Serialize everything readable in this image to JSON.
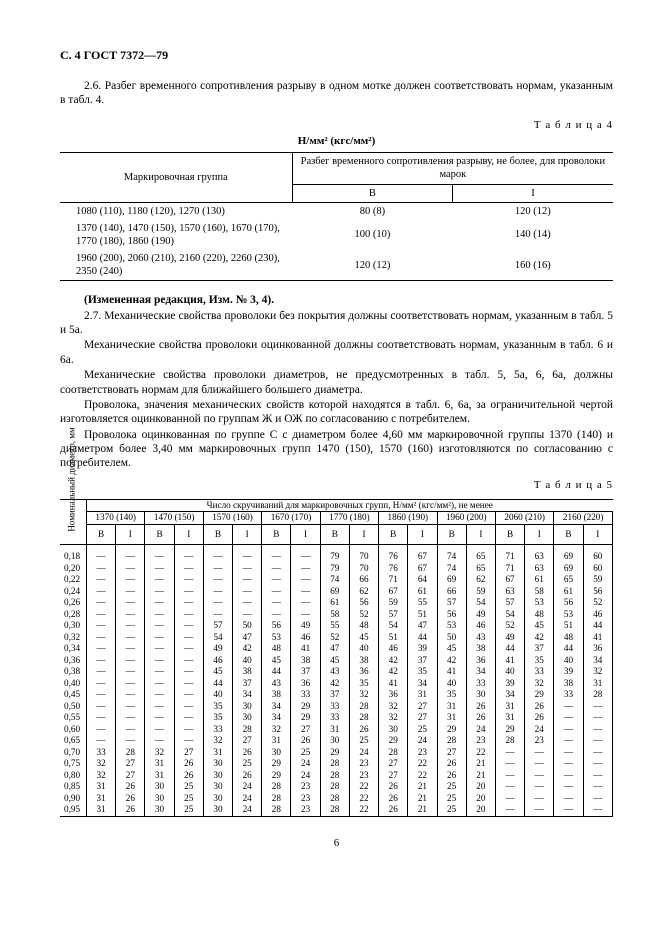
{
  "header": "С. 4  ГОСТ 7372—79",
  "p26": "2.6.  Разбег временного сопротивления разрыву в одном мотке должен соответствовать нормам, указанным в табл. 4.",
  "t4label": "Т а б л и ц а  4",
  "t4unit": "Н/мм² (кгс/мм²)",
  "t4": {
    "h_group": "Маркировочная группа",
    "h_spread": "Разбег временного сопротивления разрыву, не более,\nдля проволоки марок",
    "h_v": "В",
    "h_i": "I",
    "rows": [
      {
        "g": "1080 (110), 1180 (120), 1270 (130)",
        "v": "80 (8)",
        "i": "120 (12)"
      },
      {
        "g": "1370 (140), 1470 (150), 1570 (160), 1670 (170), 1770 (180), 1860 (190)",
        "v": "100 (10)",
        "i": "140 (14)"
      },
      {
        "g": "1960 (200), 2060 (210), 2160 (220), 2260 (230), 2350 (240)",
        "v": "120 (12)",
        "i": "160 (16)"
      }
    ]
  },
  "pChange": "(Измененная редакция, Изм. № 3, 4).",
  "p27a": "2.7.  Механические свойства проволоки без покрытия должны соответствовать нормам, указанным в табл. 5 и 5а.",
  "p27b": "Механические свойства проволоки оцинкованной должны соответствовать нормам, указанным в табл. 6 и 6а.",
  "p27c": "Механические свойства проволоки диаметров, не предусмотренных в табл. 5, 5а, 6, 6а, должны соответствовать нормам для ближайшего большего диаметра.",
  "p27d": "Проволока, значения механических свойств которой находятся в табл. 6, 6а, за ограничительной чертой изготовляется оцинкованной по группам Ж и ОЖ по согласованию с потребителем.",
  "p27e": "Проволока оцинкованная по группе С с диаметром более 4,60 мм маркировочной группы 1370 (140) и диаметром более 3,40 мм маркировочных групп 1470 (150), 1570 (160) изготовляются по согласованию с потребителем.",
  "t5label": "Т а б л и ц а  5",
  "t5": {
    "vert": "Номинальный\nдиаметр, мм",
    "title": "Число скручиваний для маркировочных групп, Н/мм² (кгс/мм²), не менее",
    "groups": [
      "1370 (140)",
      "1470 (150)",
      "1570 (160)",
      "1670 (170)",
      "1770 (180)",
      "1860 (190)",
      "1960 (200)",
      "2060 (210)",
      "2160 (220)"
    ],
    "sub": [
      "В",
      "I"
    ],
    "diam": [
      "0,18",
      "0,20",
      "0,22",
      "0,24",
      "0,26",
      "0,28",
      "0,30",
      "0,32",
      "0,34",
      "0,36",
      "0,38",
      "0,40",
      "0,45",
      "0,50",
      "0,55",
      "0,60",
      "0,65",
      "0,70",
      "0,75",
      "0,80",
      "0,85",
      "0,90",
      "0,95"
    ],
    "data": [
      [
        "—",
        "—",
        "—",
        "—",
        "—",
        "—",
        "—",
        "—",
        "79",
        "70",
        "76",
        "67",
        "74",
        "65",
        "71",
        "63",
        "69",
        "60"
      ],
      [
        "—",
        "—",
        "—",
        "—",
        "—",
        "—",
        "—",
        "—",
        "79",
        "70",
        "76",
        "67",
        "74",
        "65",
        "71",
        "63",
        "69",
        "60"
      ],
      [
        "—",
        "—",
        "—",
        "—",
        "—",
        "—",
        "—",
        "—",
        "74",
        "66",
        "71",
        "64",
        "69",
        "62",
        "67",
        "61",
        "65",
        "59"
      ],
      [
        "—",
        "—",
        "—",
        "—",
        "—",
        "—",
        "—",
        "—",
        "69",
        "62",
        "67",
        "61",
        "66",
        "59",
        "63",
        "58",
        "61",
        "56"
      ],
      [
        "—",
        "—",
        "—",
        "—",
        "—",
        "—",
        "—",
        "—",
        "61",
        "56",
        "59",
        "55",
        "57",
        "54",
        "57",
        "53",
        "56",
        "52"
      ],
      [
        "—",
        "—",
        "—",
        "—",
        "—",
        "—",
        "—",
        "—",
        "58",
        "52",
        "57",
        "51",
        "56",
        "49",
        "54",
        "48",
        "53",
        "46"
      ],
      [
        "—",
        "—",
        "—",
        "—",
        "57",
        "50",
        "56",
        "49",
        "55",
        "48",
        "54",
        "47",
        "53",
        "46",
        "52",
        "45",
        "51",
        "44"
      ],
      [
        "—",
        "—",
        "—",
        "—",
        "54",
        "47",
        "53",
        "46",
        "52",
        "45",
        "51",
        "44",
        "50",
        "43",
        "49",
        "42",
        "48",
        "41"
      ],
      [
        "—",
        "—",
        "—",
        "—",
        "49",
        "42",
        "48",
        "41",
        "47",
        "40",
        "46",
        "39",
        "45",
        "38",
        "44",
        "37",
        "44",
        "36"
      ],
      [
        "—",
        "—",
        "—",
        "—",
        "46",
        "40",
        "45",
        "38",
        "45",
        "38",
        "42",
        "37",
        "42",
        "36",
        "41",
        "35",
        "40",
        "34"
      ],
      [
        "—",
        "—",
        "—",
        "—",
        "45",
        "38",
        "44",
        "37",
        "43",
        "36",
        "42",
        "35",
        "41",
        "34",
        "40",
        "33",
        "39",
        "32"
      ],
      [
        "—",
        "—",
        "—",
        "—",
        "44",
        "37",
        "43",
        "36",
        "42",
        "35",
        "41",
        "34",
        "40",
        "33",
        "39",
        "32",
        "38",
        "31"
      ],
      [
        "—",
        "—",
        "—",
        "—",
        "40",
        "34",
        "38",
        "33",
        "37",
        "32",
        "36",
        "31",
        "35",
        "30",
        "34",
        "29",
        "33",
        "28"
      ],
      [
        "—",
        "—",
        "—",
        "—",
        "35",
        "30",
        "34",
        "29",
        "33",
        "28",
        "32",
        "27",
        "31",
        "26",
        "31",
        "26",
        "—",
        "—"
      ],
      [
        "—",
        "—",
        "—",
        "—",
        "35",
        "30",
        "34",
        "29",
        "33",
        "28",
        "32",
        "27",
        "31",
        "26",
        "31",
        "26",
        "—",
        "—"
      ],
      [
        "—",
        "—",
        "—",
        "—",
        "33",
        "28",
        "32",
        "27",
        "31",
        "26",
        "30",
        "25",
        "29",
        "24",
        "29",
        "24",
        "—",
        "—"
      ],
      [
        "—",
        "—",
        "—",
        "—",
        "32",
        "27",
        "31",
        "26",
        "30",
        "25",
        "29",
        "24",
        "28",
        "23",
        "28",
        "23",
        "—",
        "—"
      ],
      [
        "33",
        "28",
        "32",
        "27",
        "31",
        "26",
        "30",
        "25",
        "29",
        "24",
        "28",
        "23",
        "27",
        "22",
        "—",
        "—",
        "—",
        "—"
      ],
      [
        "32",
        "27",
        "31",
        "26",
        "30",
        "25",
        "29",
        "24",
        "28",
        "23",
        "27",
        "22",
        "26",
        "21",
        "—",
        "—",
        "—",
        "—"
      ],
      [
        "32",
        "27",
        "31",
        "26",
        "30",
        "26",
        "29",
        "24",
        "28",
        "23",
        "27",
        "22",
        "26",
        "21",
        "—",
        "—",
        "—",
        "—"
      ],
      [
        "31",
        "26",
        "30",
        "25",
        "30",
        "24",
        "28",
        "23",
        "28",
        "22",
        "26",
        "21",
        "25",
        "20",
        "—",
        "—",
        "—",
        "—"
      ],
      [
        "31",
        "26",
        "30",
        "25",
        "30",
        "24",
        "28",
        "23",
        "28",
        "22",
        "26",
        "21",
        "25",
        "20",
        "—",
        "—",
        "—",
        "—"
      ],
      [
        "31",
        "26",
        "30",
        "25",
        "30",
        "24",
        "28",
        "23",
        "28",
        "22",
        "26",
        "21",
        "25",
        "20",
        "—",
        "—",
        "—",
        "—"
      ]
    ]
  },
  "pagenum": "6"
}
